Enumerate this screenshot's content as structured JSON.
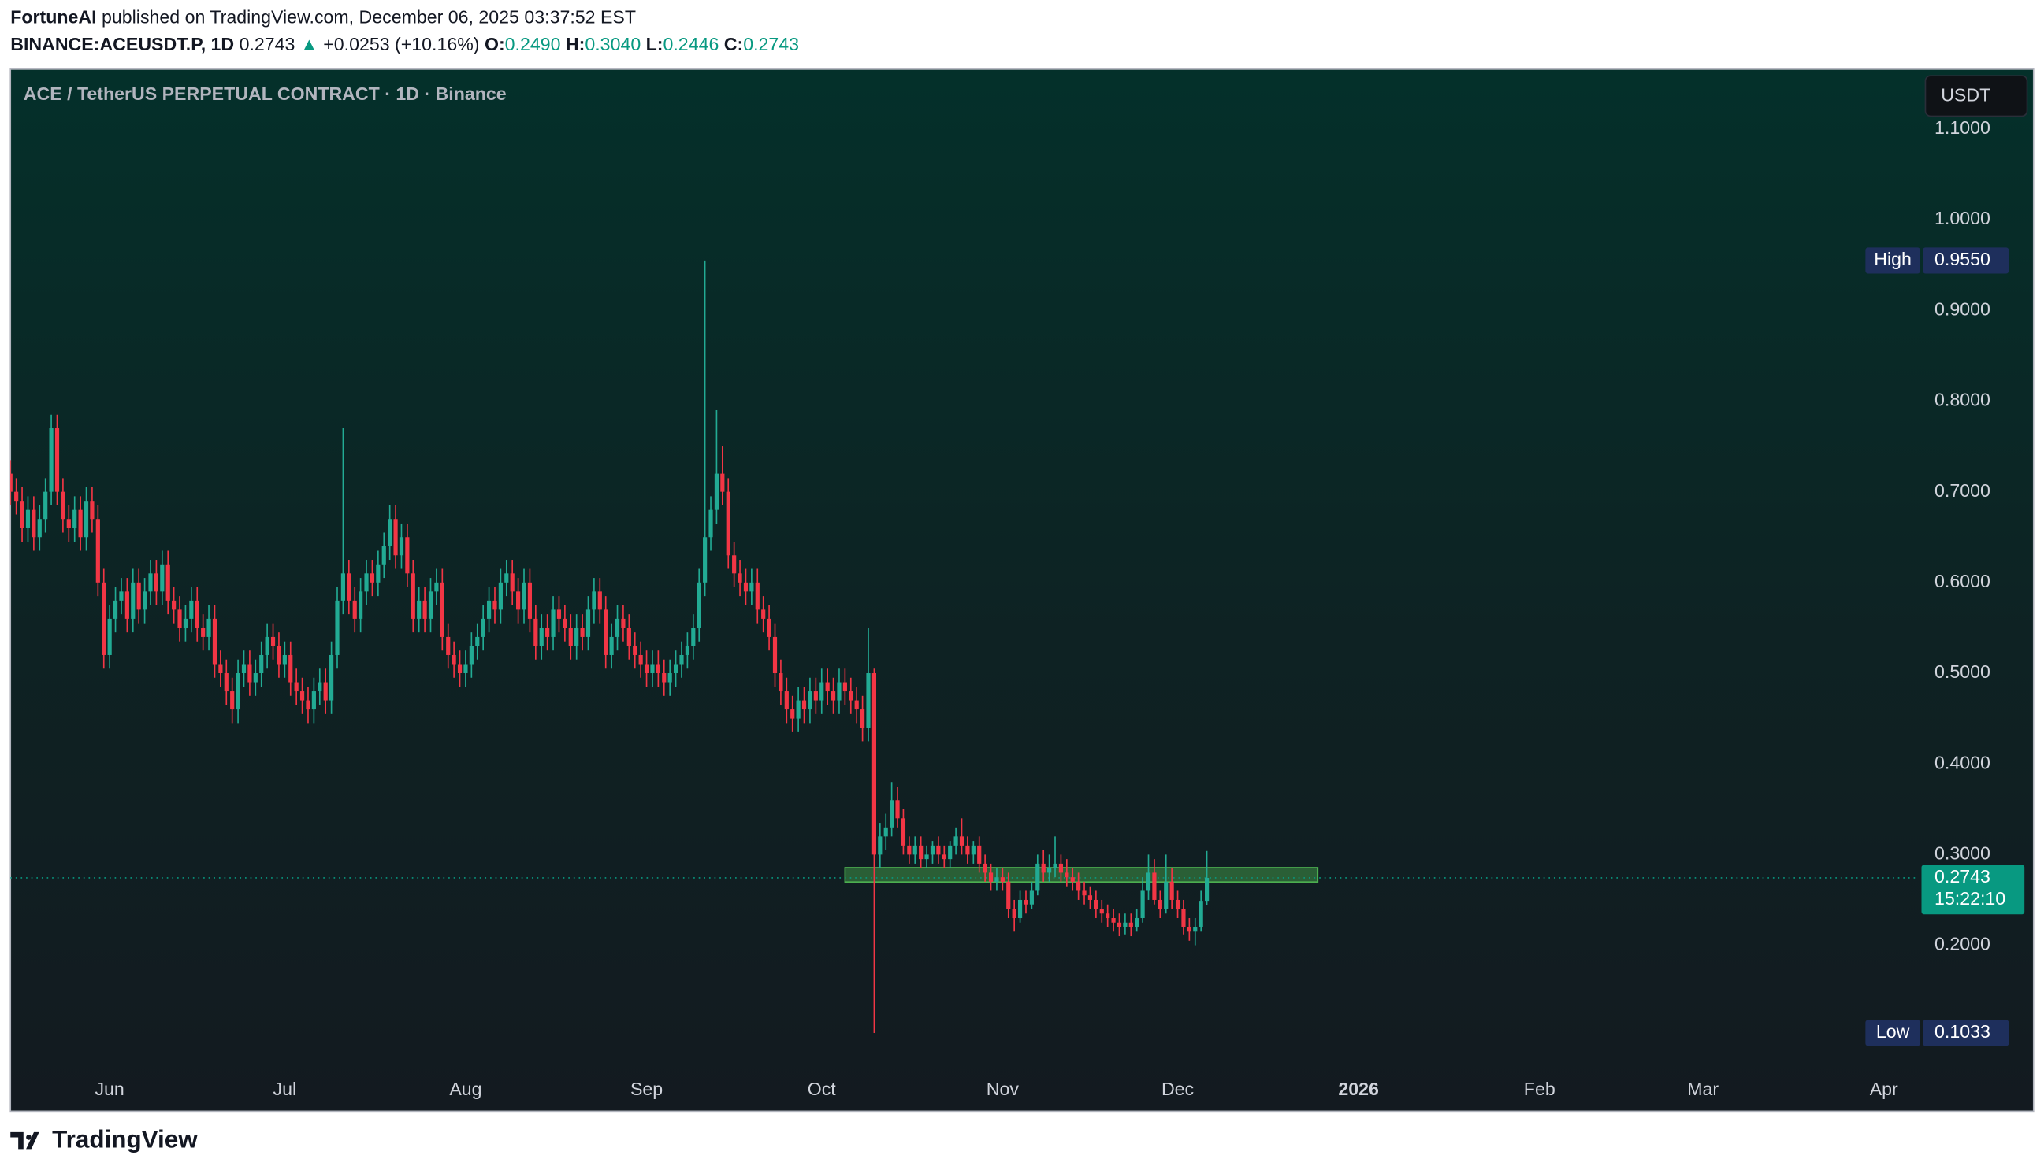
{
  "header": {
    "author": "FortuneAI",
    "published": "published on TradingView.com, December 06, 2025 03:37:52 EST",
    "symbol": "BINANCE:ACEUSDT.P, 1D",
    "last": "0.2743",
    "arrow": "▲",
    "change": "+0.0253 (+10.16%)",
    "ohlc": [
      {
        "label": "O:",
        "value": "0.2490"
      },
      {
        "label": "H:",
        "value": "0.3040"
      },
      {
        "label": "L:",
        "value": "0.2446"
      },
      {
        "label": "C:",
        "value": "0.2743"
      }
    ]
  },
  "footer": {
    "brand": "TradingView"
  },
  "chart_data": {
    "type": "candlestick",
    "title": "ACE / TetherUS PERPETUAL CONTRACT · 1D · Binance",
    "currency": "USDT",
    "up_color": "#22ab94",
    "down_color": "#f23645",
    "grid": false,
    "xlim": [
      0,
      327
    ],
    "ylim": [
      0.017,
      1.166
    ],
    "xticks": [
      {
        "value": 17,
        "label": "Jun"
      },
      {
        "value": 47,
        "label": "Jul"
      },
      {
        "value": 78,
        "label": "Aug"
      },
      {
        "value": 109,
        "label": "Sep"
      },
      {
        "value": 139,
        "label": "Oct"
      },
      {
        "value": 170,
        "label": "Nov"
      },
      {
        "value": 200,
        "label": "Dec"
      },
      {
        "value": 231,
        "label": "2026",
        "bold": true
      },
      {
        "value": 262,
        "label": "Feb"
      },
      {
        "value": 290,
        "label": "Mar"
      },
      {
        "value": 321,
        "label": "Apr"
      }
    ],
    "yticks": [
      {
        "value": 1.1,
        "label": "1.1000"
      },
      {
        "value": 1.0,
        "label": "1.0000"
      },
      {
        "value": 0.9,
        "label": "0.9000"
      },
      {
        "value": 0.8,
        "label": "0.8000"
      },
      {
        "value": 0.7,
        "label": "0.7000"
      },
      {
        "value": 0.6,
        "label": "0.6000"
      },
      {
        "value": 0.5,
        "label": "0.5000"
      },
      {
        "value": 0.4,
        "label": "0.4000"
      },
      {
        "value": 0.3,
        "label": "0.3000"
      },
      {
        "value": 0.2,
        "label": "0.2000"
      }
    ],
    "open": [
      0.72,
      0.7,
      0.69,
      0.66,
      0.68,
      0.65,
      0.67,
      0.7,
      0.77,
      0.7,
      0.67,
      0.66,
      0.68,
      0.65,
      0.69,
      0.67,
      0.6,
      0.52,
      0.56,
      0.58,
      0.59,
      0.56,
      0.6,
      0.57,
      0.59,
      0.61,
      0.59,
      0.62,
      0.58,
      0.57,
      0.55,
      0.56,
      0.58,
      0.55,
      0.54,
      0.56,
      0.51,
      0.5,
      0.48,
      0.46,
      0.5,
      0.51,
      0.49,
      0.5,
      0.52,
      0.54,
      0.53,
      0.51,
      0.52,
      0.49,
      0.48,
      0.47,
      0.46,
      0.48,
      0.49,
      0.47,
      0.52,
      0.58,
      0.61,
      0.58,
      0.56,
      0.59,
      0.61,
      0.6,
      0.62,
      0.64,
      0.67,
      0.63,
      0.65,
      0.61,
      0.56,
      0.58,
      0.56,
      0.59,
      0.6,
      0.54,
      0.52,
      0.51,
      0.5,
      0.51,
      0.53,
      0.54,
      0.56,
      0.58,
      0.57,
      0.6,
      0.61,
      0.59,
      0.57,
      0.6,
      0.56,
      0.53,
      0.55,
      0.54,
      0.57,
      0.56,
      0.55,
      0.53,
      0.55,
      0.54,
      0.57,
      0.59,
      0.57,
      0.52,
      0.54,
      0.56,
      0.55,
      0.53,
      0.52,
      0.51,
      0.5,
      0.51,
      0.5,
      0.49,
      0.5,
      0.51,
      0.52,
      0.53,
      0.55,
      0.6,
      0.65,
      0.68,
      0.72,
      0.7,
      0.63,
      0.61,
      0.6,
      0.59,
      0.6,
      0.57,
      0.56,
      0.54,
      0.5,
      0.48,
      0.46,
      0.45,
      0.47,
      0.46,
      0.48,
      0.47,
      0.49,
      0.48,
      0.47,
      0.49,
      0.48,
      0.47,
      0.46,
      0.44,
      0.5,
      0.3,
      0.32,
      0.33,
      0.36,
      0.34,
      0.31,
      0.3,
      0.31,
      0.295,
      0.3,
      0.31,
      0.3,
      0.295,
      0.31,
      0.32,
      0.31,
      0.3,
      0.31,
      0.29,
      0.28,
      0.27,
      0.275,
      0.27,
      0.24,
      0.23,
      0.25,
      0.245,
      0.26,
      0.29,
      0.28,
      0.285,
      0.29,
      0.28,
      0.275,
      0.27,
      0.26,
      0.255,
      0.25,
      0.24,
      0.235,
      0.23,
      0.225,
      0.22,
      0.225,
      0.22,
      0.23,
      0.26,
      0.28,
      0.25,
      0.24,
      0.27,
      0.25,
      0.24,
      0.22,
      0.215,
      0.22,
      0.249
    ],
    "high": [
      0.735,
      0.715,
      0.705,
      0.695,
      0.695,
      0.685,
      0.715,
      0.785,
      0.785,
      0.715,
      0.685,
      0.695,
      0.695,
      0.705,
      0.705,
      0.685,
      0.615,
      0.575,
      0.595,
      0.605,
      0.605,
      0.615,
      0.615,
      0.605,
      0.625,
      0.625,
      0.635,
      0.635,
      0.595,
      0.585,
      0.575,
      0.595,
      0.595,
      0.565,
      0.575,
      0.575,
      0.525,
      0.515,
      0.495,
      0.515,
      0.525,
      0.525,
      0.515,
      0.535,
      0.555,
      0.555,
      0.545,
      0.535,
      0.535,
      0.505,
      0.495,
      0.485,
      0.495,
      0.505,
      0.505,
      0.535,
      0.595,
      0.77,
      0.625,
      0.595,
      0.605,
      0.625,
      0.625,
      0.635,
      0.655,
      0.685,
      0.685,
      0.665,
      0.665,
      0.625,
      0.595,
      0.595,
      0.605,
      0.615,
      0.615,
      0.555,
      0.535,
      0.525,
      0.525,
      0.545,
      0.555,
      0.575,
      0.595,
      0.595,
      0.615,
      0.625,
      0.625,
      0.605,
      0.615,
      0.615,
      0.575,
      0.565,
      0.565,
      0.585,
      0.585,
      0.575,
      0.565,
      0.565,
      0.565,
      0.585,
      0.605,
      0.605,
      0.585,
      0.555,
      0.575,
      0.575,
      0.565,
      0.545,
      0.535,
      0.525,
      0.525,
      0.525,
      0.515,
      0.515,
      0.525,
      0.535,
      0.545,
      0.565,
      0.615,
      0.955,
      0.695,
      0.79,
      0.75,
      0.715,
      0.645,
      0.625,
      0.615,
      0.615,
      0.615,
      0.585,
      0.575,
      0.555,
      0.515,
      0.495,
      0.475,
      0.485,
      0.485,
      0.495,
      0.495,
      0.505,
      0.505,
      0.495,
      0.505,
      0.505,
      0.495,
      0.485,
      0.475,
      0.55,
      0.505,
      0.335,
      0.345,
      0.38,
      0.375,
      0.35,
      0.32,
      0.32,
      0.32,
      0.31,
      0.315,
      0.32,
      0.31,
      0.315,
      0.33,
      0.34,
      0.32,
      0.315,
      0.32,
      0.3,
      0.29,
      0.285,
      0.285,
      0.28,
      0.25,
      0.26,
      0.26,
      0.27,
      0.3,
      0.305,
      0.3,
      0.32,
      0.3,
      0.295,
      0.285,
      0.28,
      0.27,
      0.265,
      0.26,
      0.25,
      0.245,
      0.24,
      0.235,
      0.235,
      0.235,
      0.24,
      0.275,
      0.3,
      0.295,
      0.26,
      0.3,
      0.285,
      0.26,
      0.25,
      0.23,
      0.23,
      0.26,
      0.304
    ],
    "low": [
      0.685,
      0.675,
      0.645,
      0.645,
      0.635,
      0.635,
      0.655,
      0.685,
      0.685,
      0.655,
      0.645,
      0.645,
      0.635,
      0.635,
      0.655,
      0.585,
      0.505,
      0.505,
      0.545,
      0.565,
      0.545,
      0.545,
      0.555,
      0.555,
      0.575,
      0.575,
      0.575,
      0.565,
      0.555,
      0.535,
      0.535,
      0.545,
      0.535,
      0.525,
      0.525,
      0.495,
      0.485,
      0.465,
      0.445,
      0.445,
      0.485,
      0.475,
      0.475,
      0.485,
      0.505,
      0.515,
      0.495,
      0.495,
      0.475,
      0.465,
      0.455,
      0.445,
      0.445,
      0.465,
      0.455,
      0.455,
      0.505,
      0.565,
      0.565,
      0.545,
      0.545,
      0.575,
      0.585,
      0.585,
      0.605,
      0.625,
      0.615,
      0.615,
      0.595,
      0.545,
      0.545,
      0.545,
      0.545,
      0.575,
      0.525,
      0.505,
      0.495,
      0.485,
      0.485,
      0.495,
      0.515,
      0.525,
      0.545,
      0.555,
      0.555,
      0.585,
      0.575,
      0.555,
      0.555,
      0.545,
      0.515,
      0.515,
      0.525,
      0.525,
      0.545,
      0.535,
      0.515,
      0.515,
      0.525,
      0.525,
      0.555,
      0.555,
      0.505,
      0.505,
      0.525,
      0.535,
      0.515,
      0.505,
      0.495,
      0.485,
      0.485,
      0.485,
      0.475,
      0.475,
      0.485,
      0.495,
      0.505,
      0.515,
      0.535,
      0.585,
      0.635,
      0.665,
      0.685,
      0.615,
      0.595,
      0.585,
      0.575,
      0.575,
      0.555,
      0.545,
      0.525,
      0.485,
      0.465,
      0.445,
      0.435,
      0.435,
      0.445,
      0.445,
      0.455,
      0.455,
      0.465,
      0.455,
      0.455,
      0.465,
      0.455,
      0.445,
      0.425,
      0.425,
      0.1033,
      0.285,
      0.305,
      0.32,
      0.33,
      0.3,
      0.29,
      0.29,
      0.285,
      0.285,
      0.29,
      0.29,
      0.285,
      0.285,
      0.3,
      0.3,
      0.29,
      0.29,
      0.28,
      0.27,
      0.26,
      0.26,
      0.26,
      0.23,
      0.215,
      0.225,
      0.235,
      0.24,
      0.255,
      0.27,
      0.27,
      0.275,
      0.27,
      0.265,
      0.26,
      0.25,
      0.245,
      0.24,
      0.23,
      0.225,
      0.22,
      0.215,
      0.21,
      0.212,
      0.21,
      0.215,
      0.225,
      0.25,
      0.245,
      0.23,
      0.235,
      0.24,
      0.23,
      0.212,
      0.205,
      0.2,
      0.215,
      0.2446
    ],
    "close": [
      0.7,
      0.69,
      0.66,
      0.68,
      0.65,
      0.67,
      0.7,
      0.77,
      0.7,
      0.67,
      0.66,
      0.68,
      0.65,
      0.69,
      0.67,
      0.6,
      0.52,
      0.56,
      0.58,
      0.59,
      0.56,
      0.6,
      0.57,
      0.59,
      0.61,
      0.59,
      0.62,
      0.58,
      0.57,
      0.55,
      0.56,
      0.58,
      0.55,
      0.54,
      0.56,
      0.51,
      0.5,
      0.48,
      0.46,
      0.5,
      0.51,
      0.49,
      0.5,
      0.52,
      0.54,
      0.53,
      0.51,
      0.52,
      0.49,
      0.48,
      0.47,
      0.46,
      0.48,
      0.49,
      0.47,
      0.52,
      0.58,
      0.61,
      0.58,
      0.56,
      0.59,
      0.61,
      0.6,
      0.62,
      0.64,
      0.67,
      0.63,
      0.65,
      0.61,
      0.56,
      0.58,
      0.56,
      0.59,
      0.6,
      0.54,
      0.52,
      0.51,
      0.5,
      0.51,
      0.53,
      0.54,
      0.56,
      0.58,
      0.57,
      0.6,
      0.61,
      0.59,
      0.57,
      0.6,
      0.56,
      0.53,
      0.55,
      0.54,
      0.57,
      0.56,
      0.55,
      0.53,
      0.55,
      0.54,
      0.57,
      0.59,
      0.57,
      0.52,
      0.54,
      0.56,
      0.55,
      0.53,
      0.52,
      0.51,
      0.5,
      0.51,
      0.5,
      0.49,
      0.5,
      0.51,
      0.52,
      0.53,
      0.55,
      0.6,
      0.65,
      0.68,
      0.72,
      0.7,
      0.63,
      0.61,
      0.6,
      0.59,
      0.6,
      0.57,
      0.56,
      0.54,
      0.5,
      0.48,
      0.46,
      0.45,
      0.47,
      0.46,
      0.48,
      0.47,
      0.49,
      0.48,
      0.47,
      0.49,
      0.48,
      0.47,
      0.46,
      0.44,
      0.5,
      0.3,
      0.32,
      0.33,
      0.36,
      0.34,
      0.31,
      0.3,
      0.31,
      0.295,
      0.3,
      0.31,
      0.3,
      0.295,
      0.31,
      0.32,
      0.31,
      0.3,
      0.31,
      0.29,
      0.28,
      0.27,
      0.275,
      0.27,
      0.24,
      0.23,
      0.25,
      0.245,
      0.26,
      0.29,
      0.28,
      0.285,
      0.29,
      0.28,
      0.275,
      0.27,
      0.26,
      0.255,
      0.25,
      0.24,
      0.235,
      0.23,
      0.225,
      0.22,
      0.225,
      0.22,
      0.23,
      0.26,
      0.28,
      0.25,
      0.24,
      0.27,
      0.25,
      0.24,
      0.22,
      0.215,
      0.22,
      0.249,
      0.2743
    ],
    "high_marker": {
      "label": "High",
      "value": 0.955,
      "value_label": "0.9550"
    },
    "low_marker": {
      "label": "Low",
      "value": 0.1033,
      "value_label": "0.1033"
    },
    "last_price": {
      "value": 0.2743,
      "label": "0.2743",
      "countdown": "15:22:10",
      "color": "#089981"
    },
    "zone": {
      "x": [
        143,
        224
      ],
      "y": [
        0.2698,
        0.2856
      ],
      "color": "#4caf50"
    }
  }
}
